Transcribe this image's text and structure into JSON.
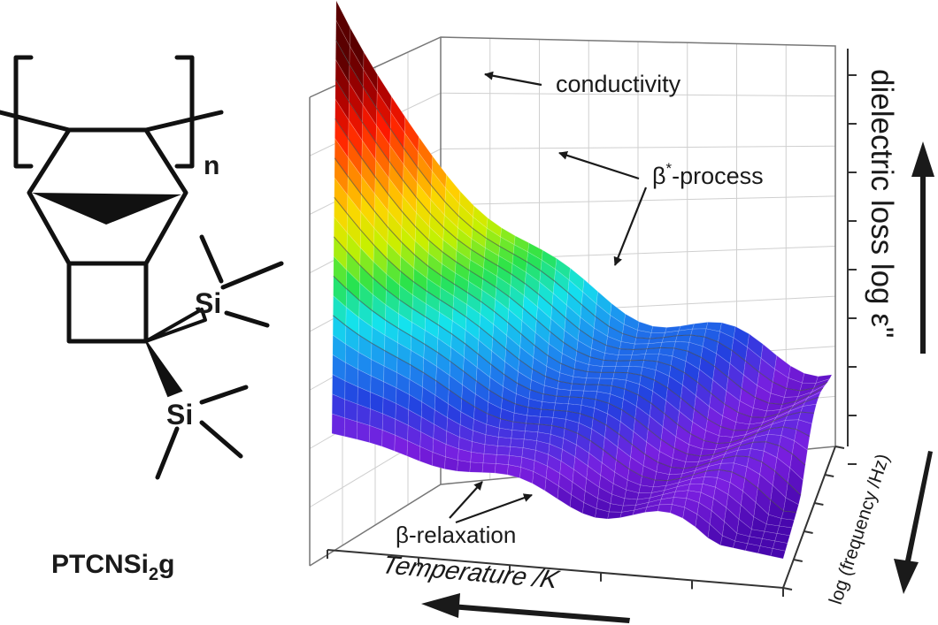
{
  "molecule": {
    "name_parts": {
      "main": "PTCNSi",
      "subscript": "2",
      "suffix": "g"
    },
    "repeat_unit_subscript": "n",
    "atoms": [
      "Si",
      "Si"
    ]
  },
  "plot": {
    "z_axis_label": "dielectric loss log ε\"",
    "x_axis_label": "Temperature /K",
    "y_axis_label": "log (frequency /Hz)",
    "annotations": {
      "conductivity": "conductivity",
      "beta_star": {
        "symbol": "β",
        "superscript": "*",
        "text": "-process"
      },
      "beta_relaxation": "β-relaxation"
    },
    "colormap": [
      "#3a00a0",
      "#7a1fe0",
      "#2340e0",
      "#1c8ff0",
      "#14e2ee",
      "#29e34b",
      "#c8f000",
      "#ffd400",
      "#ff7a00",
      "#ff1a00",
      "#a80000",
      "#5a0000"
    ]
  },
  "arrows": {
    "up_direction": "up",
    "down_direction": "down",
    "left_direction": "left"
  }
}
